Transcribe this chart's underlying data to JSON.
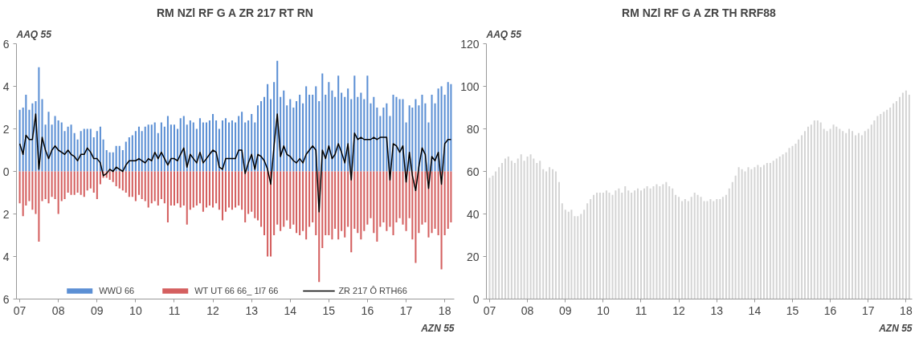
{
  "chart_data": [
    {
      "type": "bar",
      "title": "RM NZl RF G A ZR 217 RT RN",
      "annotations": [
        "AAQ 55",
        "AZN 55"
      ],
      "x": [
        "2007-01",
        "2007-02",
        "2007-03",
        "2007-04",
        "2007-05",
        "2007-06",
        "2007-07",
        "2007-08",
        "2007-09",
        "2007-10",
        "2007-11",
        "2007-12",
        "2008-01",
        "2008-02",
        "2008-03",
        "2008-04",
        "2008-05",
        "2008-06",
        "2008-07",
        "2008-08",
        "2008-09",
        "2008-10",
        "2008-11",
        "2008-12",
        "2009-01",
        "2009-02",
        "2009-03",
        "2009-04",
        "2009-05",
        "2009-06",
        "2009-07",
        "2009-08",
        "2009-09",
        "2009-10",
        "2009-11",
        "2009-12",
        "2010-01",
        "2010-02",
        "2010-03",
        "2010-04",
        "2010-05",
        "2010-06",
        "2010-07",
        "2010-08",
        "2010-09",
        "2010-10",
        "2010-11",
        "2010-12",
        "2011-01",
        "2011-02",
        "2011-03",
        "2011-04",
        "2011-05",
        "2011-06",
        "2011-07",
        "2011-08",
        "2011-09",
        "2011-10",
        "2011-11",
        "2011-12",
        "2012-01",
        "2012-02",
        "2012-03",
        "2012-04",
        "2012-05",
        "2012-06",
        "2012-07",
        "2012-08",
        "2012-09",
        "2012-10",
        "2012-11",
        "2012-12",
        "2013-01",
        "2013-02",
        "2013-03",
        "2013-04",
        "2013-05",
        "2013-06",
        "2013-07",
        "2013-08",
        "2013-09",
        "2013-10",
        "2013-11",
        "2013-12",
        "2014-01",
        "2014-02",
        "2014-03",
        "2014-04",
        "2014-05",
        "2014-06",
        "2014-07",
        "2014-08",
        "2014-09",
        "2014-10",
        "2014-11",
        "2014-12",
        "2015-01",
        "2015-02",
        "2015-03",
        "2015-04",
        "2015-05",
        "2015-06",
        "2015-07",
        "2015-08",
        "2015-09",
        "2015-10",
        "2015-11",
        "2015-12",
        "2016-01",
        "2016-02",
        "2016-03",
        "2016-04",
        "2016-05",
        "2016-06",
        "2016-07",
        "2016-08",
        "2016-09",
        "2016-10",
        "2016-11",
        "2016-12",
        "2017-01",
        "2017-02",
        "2017-03",
        "2017-04",
        "2017-05",
        "2017-06",
        "2017-07",
        "2017-08",
        "2017-09",
        "2017-10",
        "2017-11",
        "2017-12",
        "2018-01",
        "2018-02",
        "2018-03"
      ],
      "xlim": [
        "2006-12",
        "2018-04"
      ],
      "xticks": [
        {
          "value": "2007-01",
          "label": "07"
        },
        {
          "value": "2008-01",
          "label": "08"
        },
        {
          "value": "2009-01",
          "label": "09"
        },
        {
          "value": "2010-01",
          "label": "10"
        },
        {
          "value": "2011-01",
          "label": "11"
        },
        {
          "value": "2012-01",
          "label": "12"
        },
        {
          "value": "2013-01",
          "label": "13"
        },
        {
          "value": "2014-01",
          "label": "14"
        },
        {
          "value": "2015-01",
          "label": "15"
        },
        {
          "value": "2016-01",
          "label": "16"
        },
        {
          "value": "2017-01",
          "label": "17"
        },
        {
          "value": "2018-01",
          "label": "18"
        }
      ],
      "ylim": [
        -6,
        6
      ],
      "yticks": [
        {
          "value": -6,
          "label": "6"
        },
        {
          "value": -4,
          "label": "4"
        },
        {
          "value": -2,
          "label": "2"
        },
        0,
        2,
        4,
        6
      ],
      "grid": false,
      "legend": "bottom",
      "stacked": true,
      "series": [
        {
          "name": "WWÜ 66",
          "color": "#5b8fd4",
          "values": [
            2.9,
            3.0,
            3.6,
            2.9,
            3.2,
            3.3,
            4.9,
            3.4,
            2.2,
            2.8,
            2.2,
            2.6,
            2.4,
            2.3,
            1.9,
            2.1,
            2.2,
            1.8,
            1.5,
            1.9,
            2.0,
            2.0,
            2.0,
            1.6,
            1.9,
            2.1,
            1.5,
            1.0,
            0.9,
            0.9,
            1.2,
            1.2,
            1.0,
            1.4,
            1.6,
            1.7,
            1.9,
            2.1,
            1.9,
            2.1,
            2.2,
            2.2,
            2.3,
            1.8,
            2.3,
            2.1,
            2.6,
            2.2,
            2.2,
            2.0,
            2.5,
            2.6,
            2.2,
            2.4,
            2.3,
            2.0,
            2.5,
            2.3,
            2.3,
            2.4,
            2.7,
            2.4,
            2.0,
            2.4,
            2.5,
            2.3,
            2.4,
            2.3,
            2.6,
            2.8,
            2.3,
            2.4,
            2.7,
            2.3,
            3.1,
            3.3,
            3.5,
            4.1,
            3.4,
            4.2,
            5.2,
            3.5,
            3.8,
            3.1,
            3.4,
            3.0,
            3.3,
            3.6,
            3.2,
            4.0,
            3.6,
            3.6,
            4.0,
            3.3,
            4.6,
            3.6,
            4.2,
            3.8,
            3.5,
            4.5,
            3.7,
            3.5,
            3.9,
            3.4,
            4.5,
            3.5,
            3.7,
            3.4,
            4.5,
            3.2,
            3.5,
            3.0,
            2.6,
            3.0,
            3.2,
            2.6,
            3.6,
            3.5,
            3.4,
            3.4,
            2.3,
            3.1,
            3.0,
            3.4,
            3.1,
            3.6,
            3.2,
            2.3,
            3.6,
            3.2,
            3.9,
            4.0,
            3.6,
            4.2,
            4.1
          ]
        },
        {
          "name": "WT UT 66 66_ 1l7 66",
          "color": "#d45f5f",
          "values": [
            -1.5,
            -2.1,
            -1.6,
            -1.4,
            -1.8,
            -2.0,
            -3.3,
            -1.4,
            -1.3,
            -1.5,
            -1.2,
            -1.3,
            -2.0,
            -1.4,
            -1.3,
            -1.0,
            -1.1,
            -1.1,
            -1.0,
            -1.1,
            -1.2,
            -0.9,
            -0.8,
            -1.0,
            -1.3,
            -0.6,
            -0.3,
            -0.3,
            -0.4,
            -0.5,
            -0.7,
            -0.8,
            -0.9,
            -1.0,
            -1.2,
            -1.2,
            -1.4,
            -1.1,
            -1.3,
            -1.4,
            -1.7,
            -1.5,
            -1.4,
            -1.6,
            -1.3,
            -1.5,
            -2.4,
            -1.6,
            -1.6,
            -1.5,
            -1.7,
            -1.6,
            -2.5,
            -1.8,
            -1.7,
            -1.6,
            -1.5,
            -1.9,
            -1.7,
            -1.6,
            -1.7,
            -1.5,
            -1.8,
            -2.3,
            -1.9,
            -1.7,
            -1.8,
            -1.7,
            -1.6,
            -1.8,
            -2.4,
            -2.0,
            -1.9,
            -2.2,
            -2.3,
            -2.6,
            -3.0,
            -4.0,
            -4.0,
            -3.0,
            -2.5,
            -2.8,
            -2.6,
            -2.3,
            -2.7,
            -2.5,
            -2.9,
            -3.0,
            -2.8,
            -3.2,
            -2.6,
            -2.4,
            -3.0,
            -5.2,
            -3.6,
            -3.0,
            -3.0,
            -3.2,
            -2.7,
            -3.2,
            -2.8,
            -3.1,
            -2.6,
            -3.8,
            -2.7,
            -2.9,
            -3.2,
            -2.8,
            -2.5,
            -2.2,
            -2.9,
            -3.3,
            -2.6,
            -2.4,
            -2.8,
            -2.6,
            -3.0,
            -2.4,
            -2.2,
            -2.5,
            -2.8,
            -2.2,
            -3.2,
            -4.3,
            -2.9,
            -2.5,
            -2.4,
            -3.1,
            -2.9,
            -2.7,
            -3.0,
            -4.6,
            -3.0,
            -2.7,
            -2.4
          ]
        },
        {
          "name": "ZR 217 Ô RTH66",
          "type": "line",
          "color": "#000000",
          "values": [
            1.3,
            0.8,
            1.7,
            1.5,
            1.5,
            2.7,
            0.1,
            1.6,
            1.0,
            0.6,
            1.0,
            1.2,
            1.0,
            0.9,
            0.8,
            1.0,
            0.8,
            0.7,
            0.5,
            0.8,
            0.8,
            1.1,
            0.9,
            0.6,
            0.6,
            0.4,
            -0.2,
            -0.1,
            0.1,
            0.0,
            0.2,
            0.1,
            0.0,
            0.3,
            0.5,
            0.5,
            0.5,
            0.6,
            0.5,
            0.4,
            0.6,
            0.5,
            0.9,
            0.6,
            0.9,
            0.6,
            0.3,
            0.6,
            0.6,
            0.5,
            0.8,
            1.1,
            0.2,
            0.8,
            0.6,
            0.4,
            0.9,
            0.4,
            0.6,
            0.8,
            1.0,
            0.9,
            0.2,
            0.1,
            0.6,
            0.6,
            0.6,
            0.6,
            1.0,
            1.0,
            -0.1,
            0.4,
            0.8,
            0.1,
            0.8,
            0.7,
            0.5,
            0.1,
            -0.6,
            1.2,
            2.7,
            0.7,
            1.2,
            0.8,
            0.7,
            0.5,
            0.4,
            0.6,
            0.4,
            0.8,
            1.0,
            1.2,
            1.0,
            -1.9,
            1.0,
            0.6,
            1.2,
            0.6,
            0.8,
            1.3,
            0.9,
            0.4,
            1.3,
            -0.4,
            1.8,
            1.5,
            1.6,
            1.5,
            1.5,
            1.5,
            1.6,
            1.5,
            1.6,
            1.6,
            1.6,
            -0.4,
            1.3,
            1.2,
            0.9,
            1.2,
            -0.5,
            0.9,
            -0.2,
            -0.9,
            0.2,
            1.1,
            0.8,
            -0.8,
            0.7,
            0.5,
            0.9,
            -0.6,
            1.3,
            1.5,
            1.5
          ]
        }
      ]
    },
    {
      "type": "bar",
      "title": "RM NZl RF G A ZR TH RRF88",
      "annotations": [
        "AAQ 55",
        "AZN 55"
      ],
      "x": [
        "2007-01",
        "2007-02",
        "2007-03",
        "2007-04",
        "2007-05",
        "2007-06",
        "2007-07",
        "2007-08",
        "2007-09",
        "2007-10",
        "2007-11",
        "2007-12",
        "2008-01",
        "2008-02",
        "2008-03",
        "2008-04",
        "2008-05",
        "2008-06",
        "2008-07",
        "2008-08",
        "2008-09",
        "2008-10",
        "2008-11",
        "2008-12",
        "2009-01",
        "2009-02",
        "2009-03",
        "2009-04",
        "2009-05",
        "2009-06",
        "2009-07",
        "2009-08",
        "2009-09",
        "2009-10",
        "2009-11",
        "2009-12",
        "2010-01",
        "2010-02",
        "2010-03",
        "2010-04",
        "2010-05",
        "2010-06",
        "2010-07",
        "2010-08",
        "2010-09",
        "2010-10",
        "2010-11",
        "2010-12",
        "2011-01",
        "2011-02",
        "2011-03",
        "2011-04",
        "2011-05",
        "2011-06",
        "2011-07",
        "2011-08",
        "2011-09",
        "2011-10",
        "2011-11",
        "2011-12",
        "2012-01",
        "2012-02",
        "2012-03",
        "2012-04",
        "2012-05",
        "2012-06",
        "2012-07",
        "2012-08",
        "2012-09",
        "2012-10",
        "2012-11",
        "2012-12",
        "2013-01",
        "2013-02",
        "2013-03",
        "2013-04",
        "2013-05",
        "2013-06",
        "2013-07",
        "2013-08",
        "2013-09",
        "2013-10",
        "2013-11",
        "2013-12",
        "2014-01",
        "2014-02",
        "2014-03",
        "2014-04",
        "2014-05",
        "2014-06",
        "2014-07",
        "2014-08",
        "2014-09",
        "2014-10",
        "2014-11",
        "2014-12",
        "2015-01",
        "2015-02",
        "2015-03",
        "2015-04",
        "2015-05",
        "2015-06",
        "2015-07",
        "2015-08",
        "2015-09",
        "2015-10",
        "2015-11",
        "2015-12",
        "2016-01",
        "2016-02",
        "2016-03",
        "2016-04",
        "2016-05",
        "2016-06",
        "2016-07",
        "2016-08",
        "2016-09",
        "2016-10",
        "2016-11",
        "2016-12",
        "2017-01",
        "2017-02",
        "2017-03",
        "2017-04",
        "2017-05",
        "2017-06",
        "2017-07",
        "2017-08",
        "2017-09",
        "2017-10",
        "2017-11",
        "2017-12",
        "2018-01",
        "2018-02"
      ],
      "xlim": [
        "2006-12",
        "2018-03"
      ],
      "xticks": [
        {
          "value": "2007-01",
          "label": "07"
        },
        {
          "value": "2008-01",
          "label": "08"
        },
        {
          "value": "2009-01",
          "label": "09"
        },
        {
          "value": "2010-01",
          "label": "10"
        },
        {
          "value": "2011-01",
          "label": "11"
        },
        {
          "value": "2012-01",
          "label": "12"
        },
        {
          "value": "2013-01",
          "label": "13"
        },
        {
          "value": "2014-01",
          "label": "14"
        },
        {
          "value": "2015-01",
          "label": "15"
        },
        {
          "value": "2016-01",
          "label": "16"
        },
        {
          "value": "2017-01",
          "label": "17"
        },
        {
          "value": "2018-01",
          "label": "18"
        }
      ],
      "ylim": [
        0,
        120
      ],
      "yticks": [
        0,
        20,
        40,
        60,
        80,
        100,
        120
      ],
      "grid": false,
      "series": [
        {
          "color": "#d4d4d4",
          "values": [
            57,
            58,
            60,
            62,
            64,
            66,
            67,
            65,
            64,
            66,
            68,
            65,
            67,
            68,
            66,
            64,
            65,
            61,
            60,
            62,
            61,
            60,
            55,
            45,
            42,
            41,
            42,
            39,
            39,
            40,
            42,
            45,
            47,
            49,
            50,
            50,
            50,
            51,
            50,
            49,
            51,
            52,
            50,
            53,
            51,
            50,
            51,
            52,
            51,
            52,
            53,
            52,
            53,
            54,
            53,
            54,
            55,
            53,
            52,
            49,
            48,
            46,
            47,
            46,
            48,
            50,
            49,
            48,
            46,
            46,
            47,
            46,
            47,
            47,
            48,
            49,
            52,
            55,
            58,
            62,
            61,
            60,
            62,
            61,
            62,
            63,
            62,
            63,
            64,
            64,
            65,
            66,
            67,
            68,
            69,
            71,
            72,
            73,
            75,
            77,
            79,
            81,
            82,
            84,
            84,
            83,
            80,
            79,
            80,
            82,
            81,
            80,
            79,
            78,
            80,
            79,
            77,
            78,
            77,
            79,
            80,
            82,
            84,
            86,
            87,
            88,
            89,
            90,
            92,
            93,
            95,
            97,
            98,
            96
          ]
        }
      ]
    }
  ]
}
